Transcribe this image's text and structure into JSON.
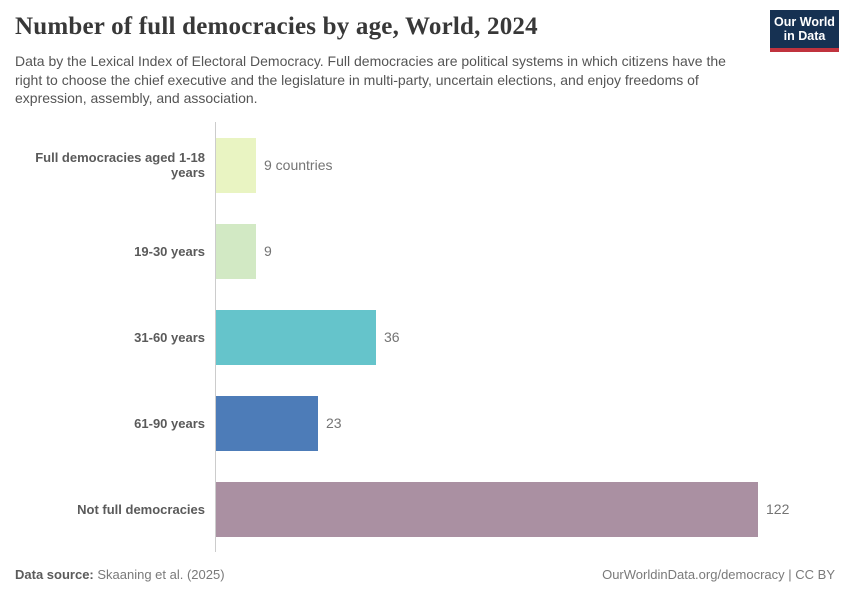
{
  "header": {
    "title": "Number of full democracies by age, World, 2024",
    "subtitle": "Data by the Lexical Index of Electoral Democracy. Full democracies are political systems in which citizens have the right to choose the chief executive and the legislature in multi-party, uncertain elections, and enjoy freedoms of expression, assembly, and association.",
    "logo": {
      "line1": "Our World",
      "line2": "in Data",
      "bg_color": "#163152",
      "accent_color": "#c0333e"
    }
  },
  "chart_data": {
    "type": "bar",
    "orientation": "horizontal",
    "title": "Number of full democracies by age, World, 2024",
    "categories": [
      "Full democracies aged 1-18 years",
      "19-30 years",
      "31-60 years",
      "61-90 years",
      "Not full democracies"
    ],
    "values": [
      9,
      9,
      36,
      23,
      122
    ],
    "value_labels": [
      "9 countries",
      "9",
      "36",
      "23",
      "122"
    ],
    "bar_colors": [
      "#e9f4c2",
      "#d2e9c4",
      "#65c4cb",
      "#4d7cb8",
      "#aa90a2"
    ],
    "xlim": [
      0,
      122
    ],
    "axis_color": "#cccccc",
    "grid": false,
    "legend": "none"
  },
  "footer": {
    "datasource_label": "Data source:",
    "datasource_value": " Skaaning et al. (2025)",
    "link": "OurWorldinData.org/democracy",
    "separator": " | ",
    "license": "CC BY"
  }
}
